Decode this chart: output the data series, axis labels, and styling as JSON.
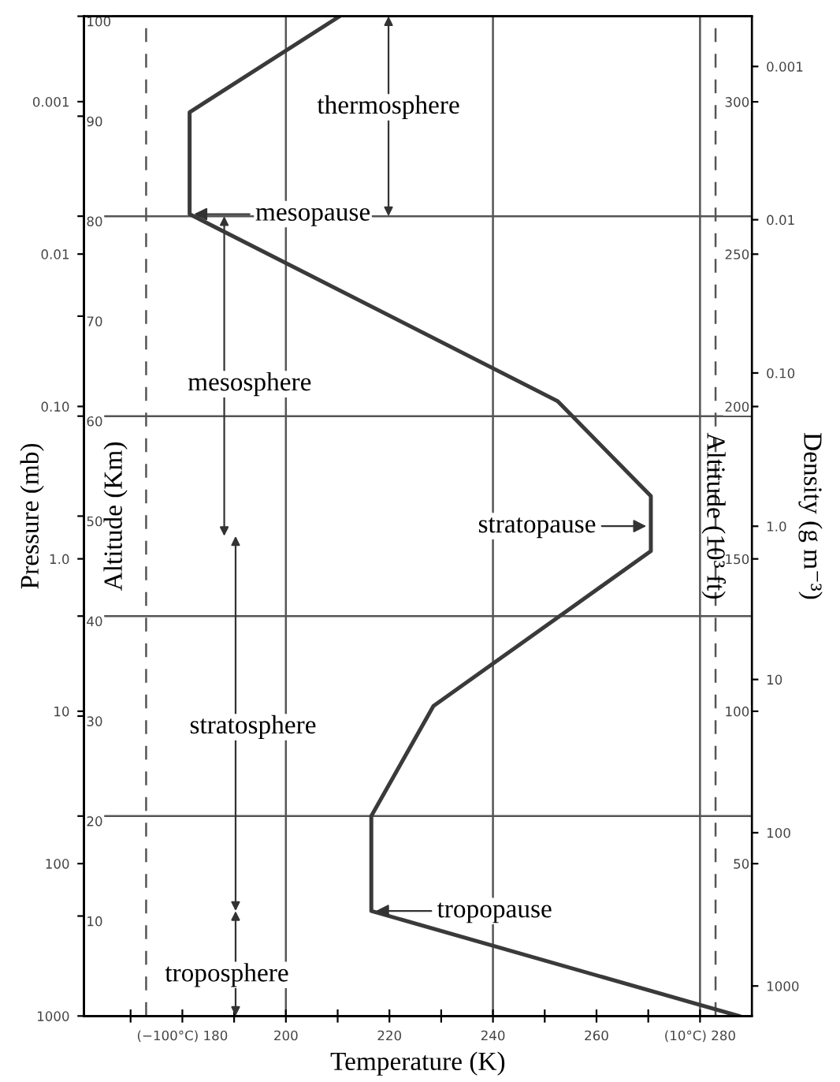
{
  "chart_data": [
    {
      "type": "line",
      "xlabel": "Temperature (K)",
      "ylabel": "Altitude (Km)",
      "y2label": "Altitude (10³ ft)",
      "y3label": "Pressure (mb)",
      "series": [
        {
          "color": "#3a3a3a",
          "x": [
            287.5,
            216.5,
            216.5,
            228.5,
            270.5,
            270.5,
            252.5,
            181.4,
            181.4,
            210.4
          ],
          "values": [
            0,
            10.5,
            20,
            31,
            46.5,
            52,
            61.5,
            80.2,
            90.4,
            100
          ]
        }
      ],
      "xlim": [
        161,
        290
      ],
      "ylim": [
        0,
        100
      ],
      "xticks": [
        {
          "value": 170,
          "label": null
        },
        {
          "value": 180,
          "label": "(−100°C) 180"
        },
        {
          "value": 190,
          "label": null
        },
        200,
        {
          "value": 210,
          "label": null
        },
        220,
        {
          "value": 230,
          "label": null
        },
        240,
        {
          "value": 250,
          "label": null
        },
        260,
        {
          "value": 270,
          "label": null
        },
        {
          "value": 280,
          "label": "(10°C) 280"
        }
      ],
      "yticks": [
        10,
        20,
        30,
        40,
        50,
        60,
        70,
        80,
        90,
        100
      ],
      "y2lim": [
        0,
        328.08
      ],
      "y2ticks": [
        50,
        100,
        150,
        200,
        250,
        300
      ],
      "y3lim": [
        1000,
        0.000275
      ],
      "y3ticks": [
        1000,
        100,
        10,
        {
          "value": 1,
          "label": "1.0"
        },
        {
          "value": 0.1,
          "label": "0.10"
        },
        0.01,
        0.001
      ],
      "log": "y3",
      "grid": false,
      "legend": false,
      "marker": "none",
      "line_style": "solid",
      "ref_lines": [
        {
          "axis": "x",
          "value": 173,
          "line_style": "dashed"
        },
        {
          "axis": "x",
          "value": 200,
          "line_style": "solid"
        },
        {
          "axis": "x",
          "value": 240,
          "line_style": "solid"
        },
        {
          "axis": "x",
          "value": 280,
          "line_style": "solid"
        },
        {
          "axis": "x",
          "value": 283,
          "line_style": "dashed"
        },
        {
          "axis": "y",
          "value": 20,
          "line_style": "solid"
        },
        {
          "axis": "y",
          "value": 40,
          "line_style": "solid"
        },
        {
          "axis": "y",
          "value": 60,
          "line_style": "solid"
        },
        {
          "axis": "y",
          "value": 80,
          "line_style": "solid"
        }
      ],
      "annotations": [
        "thermosphere",
        {
          "text": "mesopause",
          "x": 181.4,
          "y": 80.2
        },
        "mesosphere",
        {
          "text": "stratopause",
          "x": 270.5,
          "y": 49
        },
        "stratosphere",
        {
          "text": "tropopause",
          "x": 216.5,
          "y": 10.5
        },
        "troposphere"
      ]
    },
    {
      "type": "line",
      "ylabel": "Density (g m⁻³)",
      "xlim": [
        161,
        290
      ],
      "ylim": [
        1570,
        0.00047
      ],
      "yticks": [
        1000,
        100,
        10,
        {
          "value": 1,
          "label": "1.0"
        },
        {
          "value": 0.1,
          "label": "0.10"
        },
        0.01,
        0.001
      ],
      "log": true,
      "tick_labels": "y"
    }
  ]
}
